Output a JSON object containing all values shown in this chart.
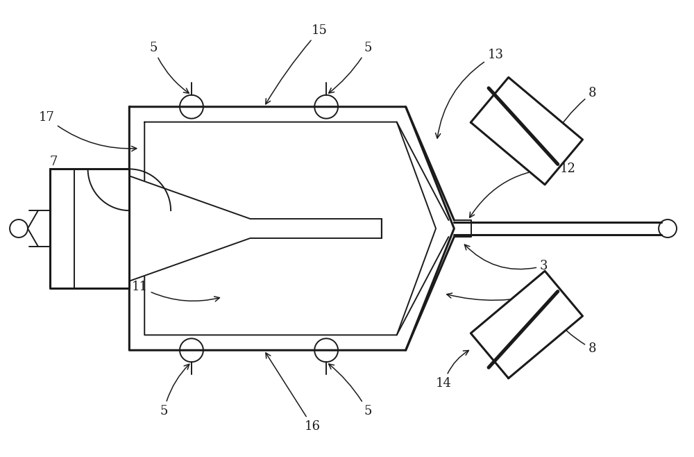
{
  "bg_color": "#ffffff",
  "line_color": "#1a1a1a",
  "lw": 1.4,
  "lw_thick": 2.2,
  "fig_width": 10.0,
  "fig_height": 6.58,
  "dpi": 100
}
